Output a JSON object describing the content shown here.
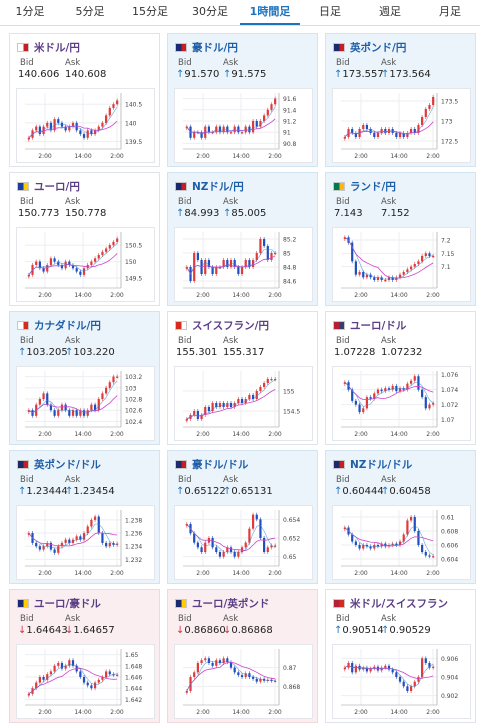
{
  "tabs": [
    "1分足",
    "5分足",
    "15分足",
    "30分足",
    "1時間足",
    "日足",
    "週足",
    "月足"
  ],
  "active_tab": 4,
  "labels": {
    "bid": "Bid",
    "ask": "Ask"
  },
  "colors": {
    "bull": "#e03a3a",
    "bear": "#1f4fbf",
    "ma": "#cc44cc",
    "ma2": "#2f7fd0"
  },
  "cards": [
    {
      "title": "米ドル/円",
      "bg": "white",
      "flag": [
        "#ffffff",
        "#c81d25"
      ],
      "dir": "",
      "bid": "140.606",
      "ask": "140.608",
      "yticks": [
        "140.5",
        "140",
        "139.5"
      ],
      "xticks": [
        "2:00",
        "14:00",
        "2:00"
      ],
      "ylim": [
        139.3,
        140.8
      ],
      "series": [
        139.6,
        139.8,
        139.9,
        139.7,
        139.9,
        140.0,
        139.8,
        140.1,
        140.0,
        139.9,
        139.8,
        139.9,
        140.0,
        139.8,
        139.7,
        139.6,
        139.8,
        139.7,
        139.8,
        139.9,
        140.0,
        140.2,
        140.4,
        140.5,
        140.6
      ]
    },
    {
      "title": "豪ドル/円",
      "bg": "blue",
      "flag": [
        "#1a2a6c",
        "#c81d25"
      ],
      "dir": "up",
      "bid": "91.570",
      "ask": "91.575",
      "yticks": [
        "91.6",
        "91.4",
        "91.2",
        "91",
        "90.8"
      ],
      "xticks": [
        "2:00",
        "14:00",
        "2:00"
      ],
      "ylim": [
        90.7,
        91.7
      ],
      "series": [
        91.1,
        90.9,
        91.0,
        91.0,
        90.9,
        91.1,
        91.0,
        91.0,
        91.1,
        91.0,
        91.1,
        91.0,
        91.0,
        91.1,
        91.0,
        91.0,
        91.1,
        91.0,
        91.2,
        91.1,
        91.2,
        91.3,
        91.4,
        91.5,
        91.6
      ]
    },
    {
      "title": "英ポンド/円",
      "bg": "blue",
      "flag": [
        "#1a2a6c",
        "#c81d25"
      ],
      "dir": "up",
      "bid": "173.557",
      "ask": "173.564",
      "yticks": [
        "173.5",
        "173",
        "172.5"
      ],
      "xticks": [
        "2:00",
        "14:00",
        "2:00"
      ],
      "ylim": [
        172.3,
        173.7
      ],
      "series": [
        172.6,
        172.8,
        172.7,
        172.6,
        172.8,
        172.9,
        172.8,
        172.7,
        172.6,
        172.7,
        172.8,
        172.7,
        172.8,
        172.7,
        172.6,
        172.7,
        172.6,
        172.7,
        172.8,
        172.7,
        172.9,
        173.1,
        173.3,
        173.4,
        173.6
      ]
    },
    {
      "title": "ユーロ/円",
      "bg": "white",
      "flag": [
        "#1a3fa0",
        "#ffcc00"
      ],
      "dir": "",
      "bid": "150.773",
      "ask": "150.778",
      "yticks": [
        "150.5",
        "150",
        "149.5"
      ],
      "xticks": [
        "2:00",
        "14:00",
        "2:00"
      ],
      "ylim": [
        149.2,
        150.9
      ],
      "series": [
        149.6,
        149.9,
        150.0,
        149.8,
        149.7,
        149.9,
        150.1,
        150.0,
        149.9,
        149.8,
        150.0,
        149.9,
        149.8,
        149.7,
        149.6,
        149.8,
        149.9,
        150.0,
        150.1,
        150.2,
        150.3,
        150.4,
        150.5,
        150.6,
        150.7
      ]
    },
    {
      "title": "NZドル/円",
      "bg": "blue",
      "flag": [
        "#1a2a6c",
        "#c81d25"
      ],
      "dir": "up",
      "bid": "84.993",
      "ask": "85.005",
      "yticks": [
        "85.2",
        "85",
        "84.8",
        "84.6"
      ],
      "xticks": [
        "2:00",
        "14:00",
        "2:00"
      ],
      "ylim": [
        84.5,
        85.3
      ],
      "series": [
        84.8,
        84.6,
        85.0,
        84.9,
        84.7,
        84.9,
        84.8,
        84.7,
        84.8,
        84.8,
        84.9,
        84.8,
        84.9,
        84.8,
        84.7,
        84.8,
        84.9,
        84.8,
        84.9,
        85.0,
        85.2,
        85.1,
        84.9,
        85.0,
        85.0
      ]
    },
    {
      "title": "ランド/円",
      "bg": "blue",
      "flag": [
        "#007a4d",
        "#ffb612"
      ],
      "dir": "",
      "bid": "7.143",
      "ask": "7.152",
      "yticks": [
        "7.2",
        "7.15",
        "7.1"
      ],
      "xticks": [
        "2:00",
        "14:00",
        "2:00"
      ],
      "ylim": [
        7.02,
        7.23
      ],
      "series": [
        7.21,
        7.19,
        7.12,
        7.07,
        7.08,
        7.06,
        7.07,
        7.06,
        7.05,
        7.06,
        7.05,
        7.05,
        7.06,
        7.05,
        7.06,
        7.07,
        7.08,
        7.09,
        7.1,
        7.11,
        7.12,
        7.14,
        7.15,
        7.14,
        7.14
      ]
    },
    {
      "title": "カナダドル/円",
      "bg": "blue",
      "flag": [
        "#ffffff",
        "#d52b1e"
      ],
      "dir": "up",
      "bid": "103.205",
      "ask": "103.220",
      "yticks": [
        "103.2",
        "103",
        "102.8",
        "102.6",
        "102.4"
      ],
      "xticks": [
        "2:00",
        "14:00",
        "2:00"
      ],
      "ylim": [
        102.3,
        103.3
      ],
      "series": [
        102.6,
        102.5,
        102.7,
        102.8,
        102.9,
        102.7,
        102.6,
        102.5,
        102.6,
        102.7,
        102.6,
        102.5,
        102.6,
        102.5,
        102.6,
        102.5,
        102.6,
        102.7,
        102.6,
        102.8,
        102.9,
        103.0,
        103.1,
        103.2,
        103.2
      ]
    },
    {
      "title": "スイスフラン/円",
      "bg": "white",
      "flag": [
        "#d52b1e",
        "#ffffff"
      ],
      "dir": "",
      "bid": "155.301",
      "ask": "155.317",
      "yticks": [
        "155",
        "154.5"
      ],
      "xticks": [
        "2:00",
        "14:00",
        "2:00"
      ],
      "ylim": [
        154.1,
        155.5
      ],
      "series": [
        154.3,
        154.4,
        154.5,
        154.3,
        154.4,
        154.6,
        154.5,
        154.7,
        154.6,
        154.7,
        154.6,
        154.7,
        154.6,
        154.7,
        154.8,
        154.7,
        154.8,
        154.9,
        154.8,
        155.0,
        155.1,
        155.2,
        155.3,
        155.3,
        155.3
      ]
    },
    {
      "title": "ユーロ/ドル",
      "bg": "white",
      "flag": [
        "#b22234",
        "#3c3b6e"
      ],
      "dir": "",
      "bid": "1.07228",
      "ask": "1.07232",
      "yticks": [
        "1.076",
        "1.074",
        "1.072",
        "1.07"
      ],
      "xticks": [
        "2:00",
        "14:00",
        "2:00"
      ],
      "ylim": [
        1.069,
        1.0765
      ],
      "series": [
        1.075,
        1.074,
        1.0725,
        1.072,
        1.071,
        1.0715,
        1.073,
        1.0728,
        1.0735,
        1.074,
        1.0738,
        1.0742,
        1.074,
        1.0745,
        1.0738,
        1.0742,
        1.074,
        1.0748,
        1.0752,
        1.0758,
        1.074,
        1.073,
        1.0715,
        1.072,
        1.0722
      ]
    },
    {
      "title": "英ポンド/ドル",
      "bg": "blue",
      "flag": [
        "#1a2a6c",
        "#c81d25"
      ],
      "dir": "up",
      "bid": "1.23444",
      "ask": "1.23454",
      "yticks": [
        "1.238",
        "1.236",
        "1.234",
        "1.232"
      ],
      "xticks": [
        "2:00",
        "14:00",
        "2:00"
      ],
      "ylim": [
        1.231,
        1.2395
      ],
      "series": [
        1.236,
        1.2345,
        1.234,
        1.2335,
        1.234,
        1.2345,
        1.2335,
        1.233,
        1.234,
        1.2345,
        1.235,
        1.2345,
        1.235,
        1.2355,
        1.235,
        1.236,
        1.237,
        1.238,
        1.2385,
        1.236,
        1.2345,
        1.234,
        1.2345,
        1.2342,
        1.2344
      ]
    },
    {
      "title": "豪ドル/ドル",
      "bg": "blue",
      "flag": [
        "#1a2a6c",
        "#c81d25"
      ],
      "dir": "up",
      "bid": "0.65122",
      "ask": "0.65131",
      "yticks": [
        "0.654",
        "0.652",
        "0.65"
      ],
      "xticks": [
        "2:00",
        "14:00",
        "2:00"
      ],
      "ylim": [
        0.649,
        0.655
      ],
      "series": [
        0.6535,
        0.6525,
        0.6515,
        0.651,
        0.6505,
        0.6515,
        0.652,
        0.651,
        0.6505,
        0.65,
        0.6505,
        0.651,
        0.6505,
        0.65,
        0.6505,
        0.651,
        0.6515,
        0.653,
        0.6545,
        0.654,
        0.652,
        0.6505,
        0.651,
        0.6512,
        0.6512
      ]
    },
    {
      "title": "NZドル/ドル",
      "bg": "blue",
      "flag": [
        "#1a2a6c",
        "#c81d25"
      ],
      "dir": "up",
      "bid": "0.60444",
      "ask": "0.60458",
      "yticks": [
        "0.61",
        "0.608",
        "0.606",
        "0.604"
      ],
      "xticks": [
        "2:00",
        "14:00",
        "2:00"
      ],
      "ylim": [
        0.603,
        0.611
      ],
      "series": [
        0.6085,
        0.6075,
        0.6065,
        0.606,
        0.6055,
        0.606,
        0.6058,
        0.6055,
        0.606,
        0.6058,
        0.6062,
        0.6058,
        0.606,
        0.6062,
        0.606,
        0.6065,
        0.6075,
        0.6095,
        0.61,
        0.608,
        0.606,
        0.605,
        0.6045,
        0.6044,
        0.6044
      ]
    },
    {
      "title": "ユーロ/豪ドル",
      "bg": "pink",
      "flag": [
        "#1a2a6c",
        "#ffcc00"
      ],
      "dir": "down",
      "bid": "1.64643",
      "ask": "1.64657",
      "yticks": [
        "1.65",
        "1.648",
        "1.646",
        "1.644",
        "1.642"
      ],
      "xticks": [
        "2:00",
        "14:00",
        "2:00"
      ],
      "ylim": [
        1.641,
        1.651
      ],
      "series": [
        1.643,
        1.644,
        1.645,
        1.646,
        1.6455,
        1.6465,
        1.647,
        1.648,
        1.6485,
        1.6475,
        1.648,
        1.649,
        1.648,
        1.647,
        1.646,
        1.645,
        1.6445,
        1.644,
        1.645,
        1.6455,
        1.646,
        1.647,
        1.6465,
        1.6464,
        1.6464
      ]
    },
    {
      "title": "ユーロ/英ポンド",
      "bg": "pink",
      "flag": [
        "#1a2a6c",
        "#ffcc00"
      ],
      "dir": "down",
      "bid": "0.86860",
      "ask": "0.86868",
      "yticks": [
        "0.87",
        "0.868"
      ],
      "xticks": [
        "2:00",
        "14:00",
        "2:00"
      ],
      "ylim": [
        0.866,
        0.872
      ],
      "series": [
        0.8675,
        0.869,
        0.8695,
        0.8705,
        0.8708,
        0.871,
        0.8705,
        0.8702,
        0.8708,
        0.8705,
        0.871,
        0.8706,
        0.87,
        0.8695,
        0.8692,
        0.869,
        0.8694,
        0.869,
        0.8688,
        0.8685,
        0.8688,
        0.8686,
        0.8687,
        0.8686,
        0.8686
      ]
    },
    {
      "title": "米ドル/スイスフラン",
      "bg": "white",
      "flag": [
        "#b22234",
        "#d52b1e"
      ],
      "dir": "up",
      "bid": "0.90514",
      "ask": "0.90529",
      "yticks": [
        "0.906",
        "0.904",
        "0.902"
      ],
      "xticks": [
        "2:00",
        "14:00",
        "2:00"
      ],
      "ylim": [
        0.901,
        0.907
      ],
      "series": [
        0.905,
        0.9055,
        0.9045,
        0.9052,
        0.9048,
        0.905,
        0.9046,
        0.9049,
        0.9051,
        0.9047,
        0.905,
        0.9052,
        0.9048,
        0.9045,
        0.904,
        0.9035,
        0.903,
        0.9025,
        0.903,
        0.9035,
        0.904,
        0.906,
        0.9055,
        0.905,
        0.9051
      ]
    }
  ]
}
